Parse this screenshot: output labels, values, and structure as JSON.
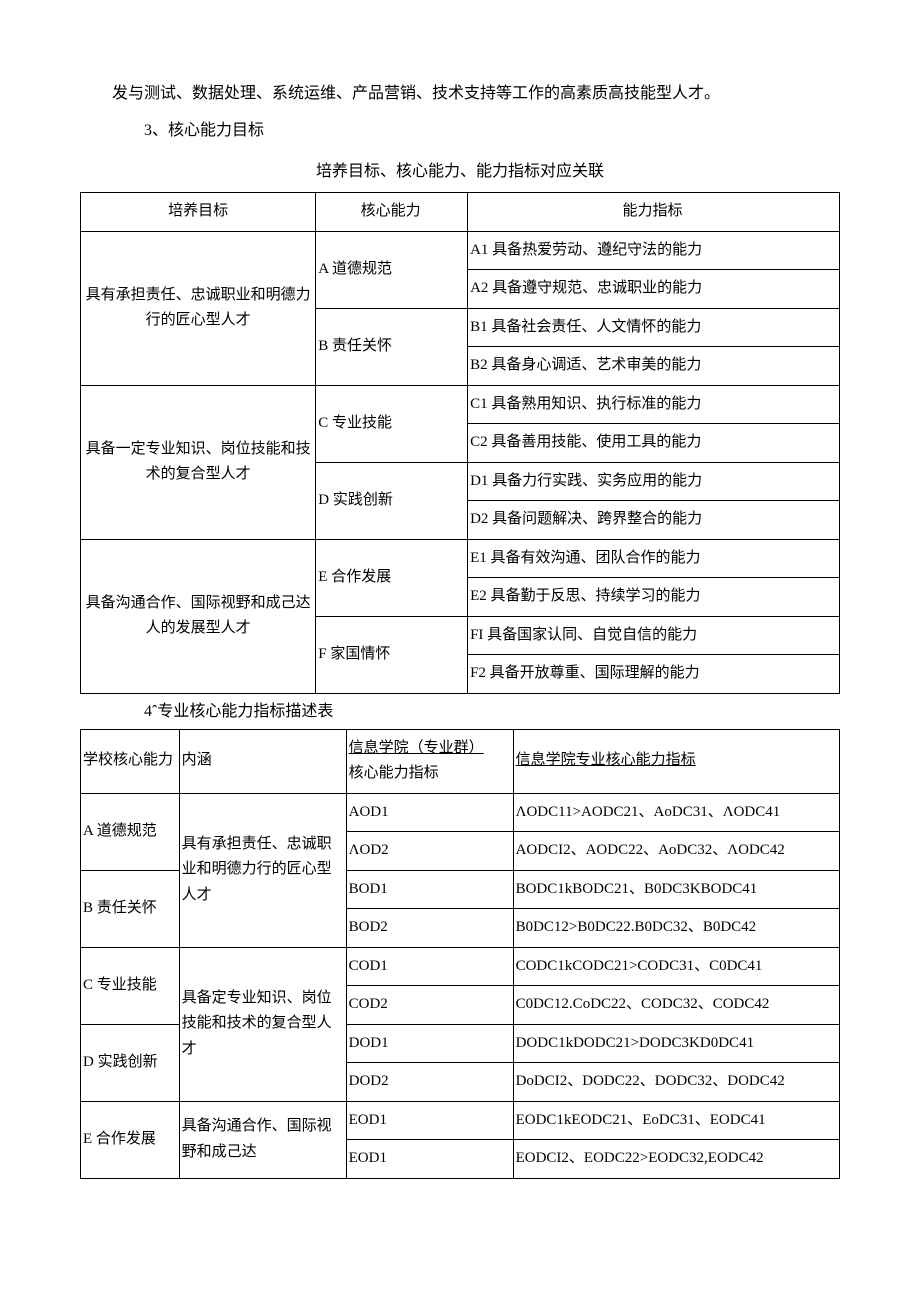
{
  "intro_line": "发与测试、数据处理、系统运维、产品营销、技术支持等工作的高素质高技能型人才。",
  "section3": "3、核心能力目标",
  "table1_title": "培养目标、核心能力、能力指标对应关联",
  "t1": {
    "headers": {
      "h1": "培养目标",
      "h2": "核心能力",
      "h3": "能力指标"
    },
    "groups": [
      {
        "goal": "具有承担责任、忠诚职业和明德力行的匠心型人才",
        "cores": [
          {
            "core": "A 道德规范",
            "indicators": [
              "A1 具备热爱劳动、遵纪守法的能力",
              "A2 具备遵守规范、忠诚职业的能力"
            ]
          },
          {
            "core": "B 责任关怀",
            "indicators": [
              "B1 具备社会责任、人文情怀的能力",
              "B2 具备身心调适、艺术审美的能力"
            ]
          }
        ]
      },
      {
        "goal": "具备一定专业知识、岗位技能和技术的复合型人才",
        "cores": [
          {
            "core": "C 专业技能",
            "indicators": [
              "C1 具备熟用知识、执行标准的能力",
              "C2 具备善用技能、使用工具的能力"
            ]
          },
          {
            "core": "D 实践创新",
            "indicators": [
              "D1 具备力行实践、实务应用的能力",
              "D2 具备问题解决、跨界整合的能力"
            ]
          }
        ]
      },
      {
        "goal": "具备沟通合作、国际视野和成己达人的发展型人才",
        "cores": [
          {
            "core": "E 合作发展",
            "indicators": [
              "E1 具备有效沟通、团队合作的能力",
              "E2 具备勤于反思、持续学习的能力"
            ]
          },
          {
            "core": "F 家国情怀",
            "indicators": [
              "FI 具备国家认同、自觉自信的能力",
              "F2 具备开放尊重、国际理解的能力"
            ]
          }
        ]
      }
    ]
  },
  "section4": "4ˆ专业核心能力指标描述表",
  "t2": {
    "headers": {
      "h1": "学校核心能力",
      "h2": "内涵",
      "h3_a": "信息学院（专业群）",
      "h3_b": "核心能力指标",
      "h4": "信息学院专业核心能力指标"
    },
    "rows": [
      {
        "school": "A 道德规范",
        "neihan": "具有承担责任、忠诚职业和明德力行的匠心型人才",
        "grp": "AOD1",
        "ind": "ΛODC11>AODC21、AoDC31、ΛODC41"
      },
      {
        "school": "",
        "neihan": "",
        "grp": "ΛOD2",
        "ind": "AODCI2、AODC22、AoDC32、ΛODC42"
      },
      {
        "school": "B 责任关怀",
        "neihan": "",
        "grp": "BOD1",
        "ind": "BODC1kBODC21、B0DC3KBODC41"
      },
      {
        "school": "",
        "neihan": "",
        "grp": "BOD2",
        "ind": "B0DC12>B0DC22.B0DC32、B0DC42"
      },
      {
        "school": "C 专业技能",
        "neihan": "具备定专业知识、岗位技能和技术的复合型人才",
        "grp": "COD1",
        "ind": "CODC1kCODC21>CODC31、C0DC41"
      },
      {
        "school": "",
        "neihan": "",
        "grp": "COD2",
        "ind": "C0DC12.CoDC22、CODC32、CODC42"
      },
      {
        "school": "D 实践创新",
        "neihan": "",
        "grp": "DOD1",
        "ind": "DODC1kDODC21>DODC3KD0DC41"
      },
      {
        "school": "",
        "neihan": "",
        "grp": "DOD2",
        "ind": "DoDCI2、DODC22、DODC32、DODC42"
      },
      {
        "school": "E 合作发展",
        "neihan": "具备沟通合作、国际视野和成己达",
        "grp": "EOD1",
        "ind": "EODC1kEODC21、EoDC31、EODC41"
      },
      {
        "school": "",
        "neihan": "",
        "grp": "EOD1",
        "ind": "EODCI2、EODC22>EODC32,EODC42"
      }
    ]
  }
}
